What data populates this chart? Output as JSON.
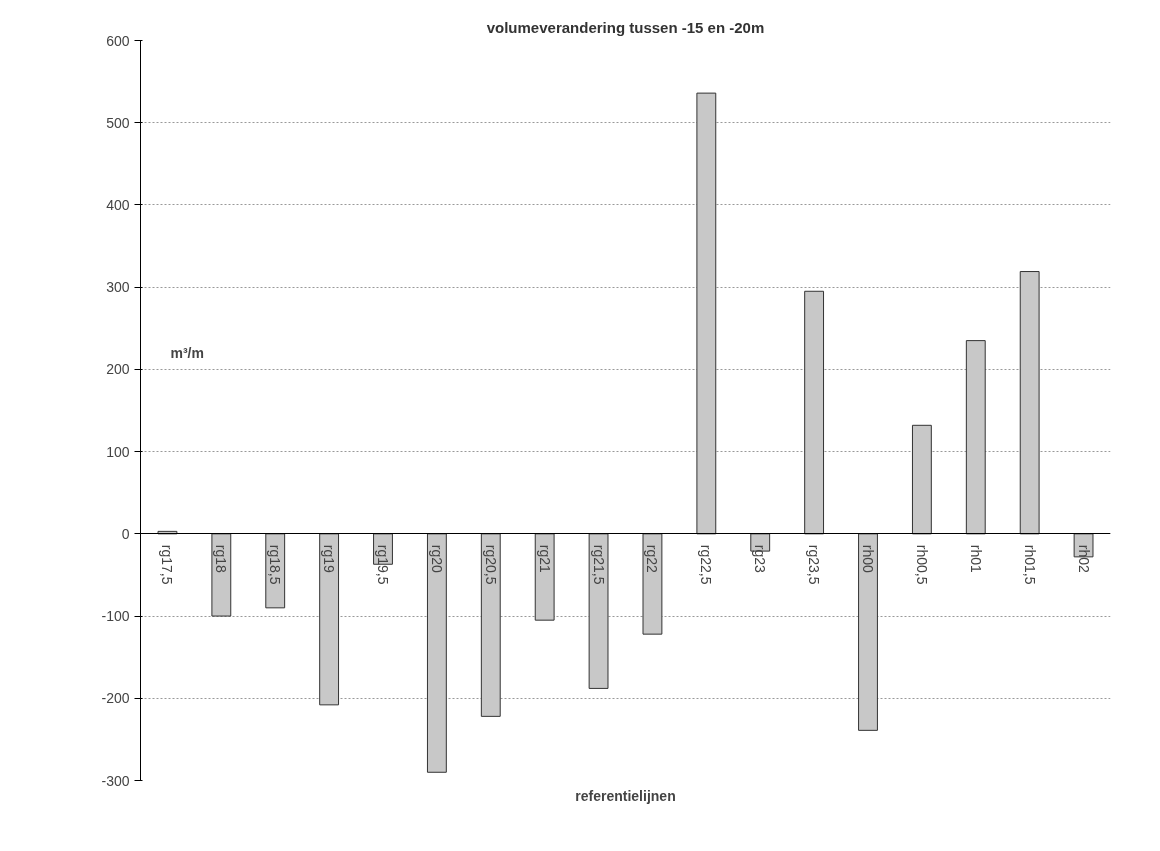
{
  "chart_data": {
    "type": "bar",
    "title": "volumeverandering tussen -15 en -20m",
    "xlabel": "referentielijnen",
    "ylabel": "m³/m",
    "categories": [
      "rg17,5",
      "rg18",
      "rg18,5",
      "rg19",
      "rg19,5",
      "rg20",
      "rg20,5",
      "rg21",
      "rg21,5",
      "rg22",
      "rg22,5",
      "rg23",
      "rg23,5",
      "rh00",
      "rh00,5",
      "rh01",
      "rh01,5",
      "rh02"
    ],
    "values": [
      3,
      -100,
      -90,
      -208,
      -37,
      -290,
      -222,
      -105,
      -188,
      -122,
      536,
      -21,
      295,
      -239,
      132,
      235,
      319,
      -28
    ],
    "color": "#c8c8c8",
    "ylim": [
      -300,
      600
    ],
    "yticks": [
      -300,
      -200,
      -100,
      0,
      100,
      200,
      300,
      400,
      500,
      600
    ],
    "grid": "y"
  }
}
